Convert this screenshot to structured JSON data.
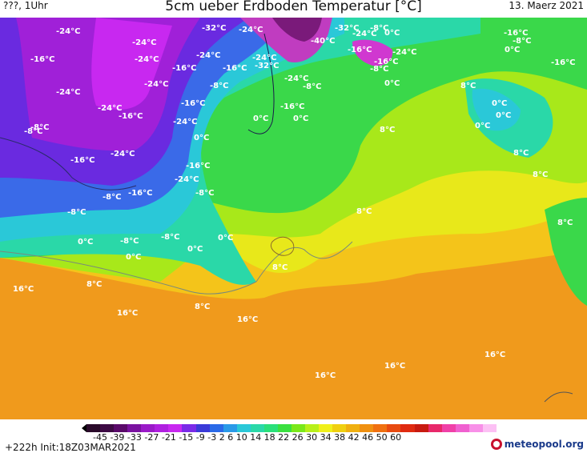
{
  "header": {
    "left": "???, 1Uhr",
    "title": "5cm ueber Erdboden Temperatur [°C]",
    "date": "13. Maerz 2021"
  },
  "map": {
    "labels": [
      {
        "text": "-24°C"
      },
      {
        "text": "-24°C"
      },
      {
        "text": "-32°C"
      },
      {
        "text": "-24°C"
      },
      {
        "text": "-32°C"
      },
      {
        "text": "-24°C"
      },
      {
        "text": "-8°C"
      },
      {
        "text": "0°C"
      },
      {
        "text": "-16°C"
      },
      {
        "text": "-40°C"
      },
      {
        "text": "-16°C"
      },
      {
        "text": "-8°C"
      },
      {
        "text": "-16°C"
      },
      {
        "text": "-24°C"
      },
      {
        "text": "0°C"
      },
      {
        "text": "-24°C"
      },
      {
        "text": "-24°C"
      },
      {
        "text": "-16°C"
      },
      {
        "text": "-24°C"
      },
      {
        "text": "-16°C"
      },
      {
        "text": "-16°C"
      },
      {
        "text": "-32°C"
      },
      {
        "text": "-16°C"
      },
      {
        "text": "-8°C"
      },
      {
        "text": "-24°C"
      },
      {
        "text": "0°C"
      },
      {
        "text": "-16°C"
      },
      {
        "text": "-24°C"
      },
      {
        "text": "-8°C"
      },
      {
        "text": "-16°C"
      },
      {
        "text": "-24°C"
      },
      {
        "text": "-24°C"
      },
      {
        "text": "-8°C"
      },
      {
        "text": "0°C"
      },
      {
        "text": "-16°C"
      },
      {
        "text": "0°C"
      },
      {
        "text": "8°C"
      },
      {
        "text": "0°C"
      },
      {
        "text": "0°C"
      },
      {
        "text": "0°C"
      },
      {
        "text": "-8°C"
      },
      {
        "text": "-24°C"
      },
      {
        "text": "-24°C"
      },
      {
        "text": "-16°C"
      },
      {
        "text": "0°C"
      },
      {
        "text": "8°C"
      },
      {
        "text": "8°C"
      },
      {
        "text": "-16°C"
      },
      {
        "text": "-24°C"
      },
      {
        "text": "-8°C"
      },
      {
        "text": "-16°C"
      },
      {
        "text": "-8°C"
      },
      {
        "text": "8°C"
      },
      {
        "text": "8°C"
      },
      {
        "text": "-8°C"
      },
      {
        "text": "-8°C"
      },
      {
        "text": "0°C"
      },
      {
        "text": "-8°C"
      },
      {
        "text": "0°C"
      },
      {
        "text": "0°C"
      },
      {
        "text": "0°C"
      },
      {
        "text": "8°C"
      },
      {
        "text": "8°C"
      },
      {
        "text": "16°C"
      },
      {
        "text": "8°C"
      },
      {
        "text": "16°C"
      },
      {
        "text": "8°C"
      },
      {
        "text": "16°C"
      },
      {
        "text": "16°C"
      },
      {
        "text": "16°C"
      },
      {
        "text": "16°C"
      },
      {
        "text": "-8°C"
      }
    ]
  },
  "scale": {
    "labels": [
      "-45",
      "-39",
      "-33",
      "-27",
      "-21",
      "-15",
      "-9",
      "-3",
      "2",
      "6",
      "10",
      "14",
      "18",
      "22",
      "26",
      "30",
      "34",
      "38",
      "42",
      "46",
      "50",
      "60"
    ],
    "colors": [
      "#2a0a2a",
      "#3d0a44",
      "#5a0a6a",
      "#7a12a0",
      "#9a1ac8",
      "#b020e0",
      "#c828f0",
      "#7a2ae8",
      "#3a3ad8",
      "#2a6ae8",
      "#2a9ae8",
      "#2ac8d8",
      "#2ad8a8",
      "#2ae07a",
      "#3ae040",
      "#7ae81a",
      "#b8f01a",
      "#f0f01a",
      "#f0d010",
      "#f0b010",
      "#f09010",
      "#f07010",
      "#e84a10",
      "#e02a10",
      "#c81a10",
      "#e8286a",
      "#f040a8",
      "#f060d0",
      "#f890e8",
      "#fcc0f4"
    ]
  },
  "footer": {
    "init": "+222h  Init:18Z03MAR2021",
    "logo": "meteopool.org"
  }
}
